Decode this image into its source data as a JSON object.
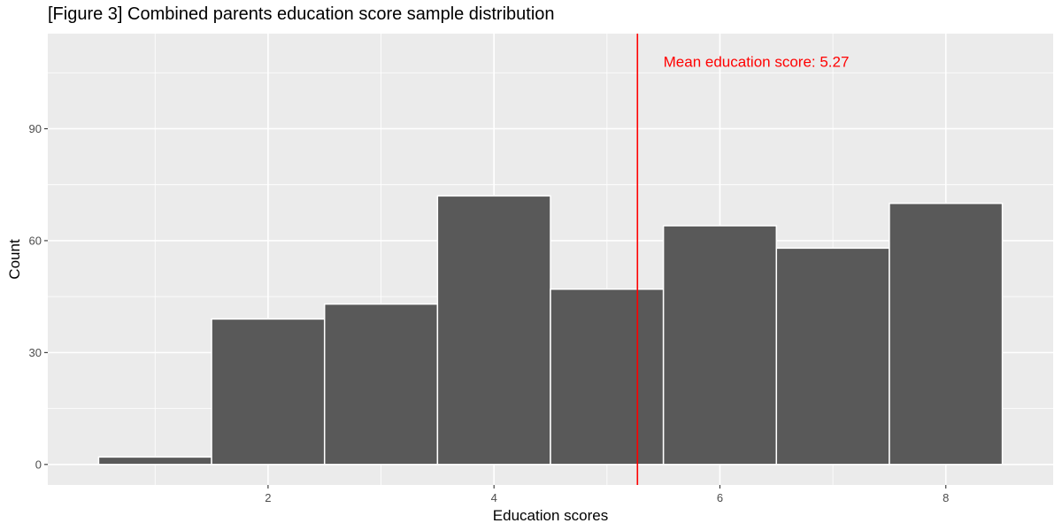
{
  "chart_data": {
    "type": "bar",
    "title": "[Figure 3] Combined parents education score sample distribution",
    "xlabel": "Education scores",
    "ylabel": "Count",
    "bins": [
      {
        "center": 1,
        "count": 2
      },
      {
        "center": 2,
        "count": 39
      },
      {
        "center": 3,
        "count": 43
      },
      {
        "center": 4,
        "count": 72
      },
      {
        "center": 5,
        "count": 47
      },
      {
        "center": 6,
        "count": 64
      },
      {
        "center": 7,
        "count": 58
      },
      {
        "center": 8,
        "count": 70
      }
    ],
    "bin_width": 1,
    "xlim": [
      0.05,
      8.95
    ],
    "ylim": [
      -5.5,
      115.5
    ],
    "x_ticks": [
      2,
      4,
      6,
      8
    ],
    "y_ticks": [
      0,
      30,
      60,
      90
    ],
    "grid": true,
    "mean_line": {
      "value": 5.27,
      "label": "Mean education score:  5.27",
      "color": "#ff0000"
    },
    "colors": {
      "bar_fill": "#595959",
      "bar_outline": "#ffffff",
      "panel_bg": "#ebebeb",
      "grid": "#ffffff"
    }
  }
}
